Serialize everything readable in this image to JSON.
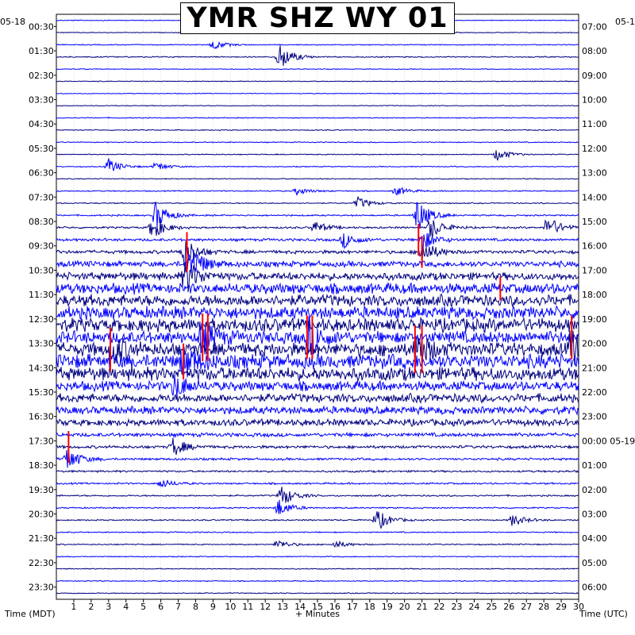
{
  "chart_data": {
    "type": "line",
    "title": "YMR SHZ WY 01",
    "left_axis_label": "Time (MDT)",
    "right_axis_label": "Time (UTC)",
    "x_axis_label": "+ Minutes",
    "left_date": "05-18",
    "right_date_top": "05-1",
    "right_date_mid": "05-19",
    "x_ticks": [
      "1",
      "2",
      "3",
      "4",
      "5",
      "6",
      "7",
      "8",
      "9",
      "10",
      "11",
      "12",
      "13",
      "14",
      "15",
      "16",
      "17",
      "18",
      "19",
      "20",
      "21",
      "22",
      "23",
      "24",
      "25",
      "26",
      "27",
      "28",
      "29",
      "30"
    ],
    "xlim": [
      0,
      30
    ],
    "rows_per_hour": 2,
    "hours": 24,
    "left_times": [
      "00:30",
      "01:30",
      "02:30",
      "03:30",
      "04:30",
      "05:30",
      "06:30",
      "07:30",
      "08:30",
      "09:30",
      "10:30",
      "11:30",
      "12:30",
      "13:30",
      "14:30",
      "15:30",
      "16:30",
      "17:30",
      "18:30",
      "19:30",
      "20:30",
      "21:30",
      "22:30",
      "23:30"
    ],
    "right_times": [
      "07:00",
      "08:00",
      "09:00",
      "10:00",
      "11:00",
      "12:00",
      "13:00",
      "14:00",
      "15:00",
      "16:00",
      "17:00",
      "18:00",
      "19:00",
      "20:00",
      "21:00",
      "22:00",
      "23:00",
      "00:00",
      "01:00",
      "02:00",
      "03:00",
      "04:00",
      "05:00",
      "06:00"
    ],
    "trace_colors": [
      "#0000ff",
      "#000080"
    ],
    "clip_color": "#ff0000",
    "grid": true,
    "noise_profile": [
      0.4,
      0.4,
      0.5,
      0.6,
      0.4,
      0.4,
      0.4,
      0.4,
      0.5,
      0.5,
      0.5,
      0.5,
      0.5,
      0.5,
      0.6,
      0.6,
      0.8,
      1.0,
      1.4,
      1.8,
      3.0,
      4.0,
      5.5,
      6.0,
      6.5,
      7.0,
      6.5,
      7.0,
      7.5,
      7.0,
      5.0,
      4.5,
      4.0,
      3.5,
      2.0,
      1.5,
      1.2,
      1.0,
      0.9,
      0.8,
      0.7,
      0.7,
      0.6,
      0.6,
      0.5,
      0.5,
      0.5,
      0.5
    ],
    "events": [
      {
        "row": 2,
        "minute": 9.0,
        "amp": 6
      },
      {
        "row": 3,
        "minute": 12.8,
        "amp": 18
      },
      {
        "row": 11,
        "minute": 25.3,
        "amp": 8
      },
      {
        "row": 12,
        "minute": 3.0,
        "amp": 10
      },
      {
        "row": 12,
        "minute": 5.7,
        "amp": 6
      },
      {
        "row": 14,
        "minute": 13.8,
        "amp": 5
      },
      {
        "row": 14,
        "minute": 19.5,
        "amp": 6
      },
      {
        "row": 15,
        "minute": 17.3,
        "amp": 8
      },
      {
        "row": 16,
        "minute": 5.7,
        "amp": 18
      },
      {
        "row": 16,
        "minute": 20.7,
        "amp": 22
      },
      {
        "row": 17,
        "minute": 5.5,
        "amp": 15
      },
      {
        "row": 17,
        "minute": 14.8,
        "amp": 8
      },
      {
        "row": 17,
        "minute": 21.5,
        "amp": 15
      },
      {
        "row": 17,
        "minute": 28.2,
        "amp": 15
      },
      {
        "row": 18,
        "minute": 16.5,
        "amp": 10
      },
      {
        "row": 18,
        "minute": 21.0,
        "amp": 14
      },
      {
        "row": 19,
        "minute": 7.3,
        "amp": 20
      },
      {
        "row": 19,
        "minute": 21.0,
        "amp": 16
      },
      {
        "row": 20,
        "minute": 7.7,
        "amp": 25
      },
      {
        "row": 21,
        "minute": 7.4,
        "amp": 22
      },
      {
        "row": 26,
        "minute": 8.3,
        "amp": 22
      },
      {
        "row": 26,
        "minute": 14.5,
        "amp": 22
      },
      {
        "row": 27,
        "minute": 3.2,
        "amp": 20
      },
      {
        "row": 27,
        "minute": 20.7,
        "amp": 22
      },
      {
        "row": 27,
        "minute": 29.6,
        "amp": 24
      },
      {
        "row": 28,
        "minute": 7.3,
        "amp": 20
      },
      {
        "row": 30,
        "minute": 6.8,
        "amp": 15
      },
      {
        "row": 35,
        "minute": 6.7,
        "amp": 12
      },
      {
        "row": 36,
        "minute": 0.6,
        "amp": 16
      },
      {
        "row": 38,
        "minute": 6.0,
        "amp": 6
      },
      {
        "row": 39,
        "minute": 12.9,
        "amp": 14
      },
      {
        "row": 40,
        "minute": 12.7,
        "amp": 12
      },
      {
        "row": 41,
        "minute": 26.2,
        "amp": 8
      },
      {
        "row": 41,
        "minute": 18.4,
        "amp": 14
      },
      {
        "row": 43,
        "minute": 12.7,
        "amp": 6
      },
      {
        "row": 43,
        "minute": 16.0,
        "amp": 5
      }
    ],
    "clipped": [
      {
        "row": 19,
        "minute": 7.5,
        "height": 50
      },
      {
        "row": 18,
        "minute": 20.8,
        "height": 40
      },
      {
        "row": 19,
        "minute": 21.0,
        "height": 40
      },
      {
        "row": 22,
        "minute": 25.5,
        "height": 30
      },
      {
        "row": 26,
        "minute": 8.4,
        "height": 60
      },
      {
        "row": 26,
        "minute": 8.7,
        "height": 60
      },
      {
        "row": 26,
        "minute": 14.4,
        "height": 55
      },
      {
        "row": 26,
        "minute": 14.7,
        "height": 55
      },
      {
        "row": 27,
        "minute": 3.1,
        "height": 55
      },
      {
        "row": 27,
        "minute": 20.6,
        "height": 60
      },
      {
        "row": 27,
        "minute": 21.0,
        "height": 60
      },
      {
        "row": 26,
        "minute": 29.6,
        "height": 55
      },
      {
        "row": 28,
        "minute": 7.3,
        "height": 45
      },
      {
        "row": 35,
        "minute": 0.7,
        "height": 40
      }
    ]
  }
}
